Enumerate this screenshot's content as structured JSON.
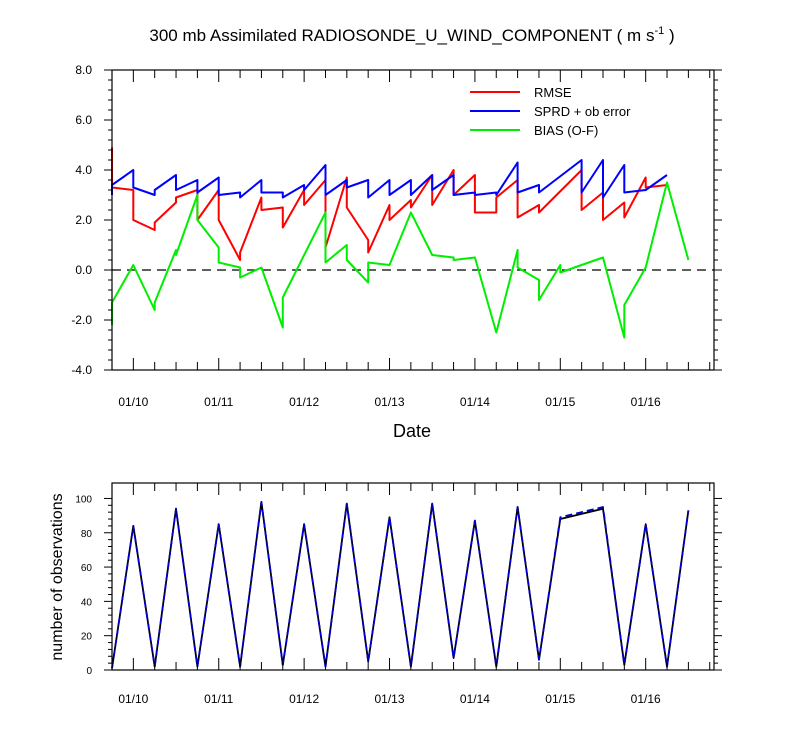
{
  "chart_data": [
    {
      "type": "line",
      "title": "300 mb Assimilated RADIOSONDE_U_WIND_COMPONENT ( m s",
      "title_superscript": "-1",
      "title_close": " )",
      "xlabel": "Date",
      "ylabel": "",
      "xlim": [
        0,
        7.05
      ],
      "ylim": [
        -4.0,
        8.0
      ],
      "yticks": [
        "-4.0",
        "-2.0",
        "0.0",
        "2.0",
        "4.0",
        "6.0",
        "8.0"
      ],
      "ytick_values": [
        -4,
        -2,
        0,
        2,
        4,
        6,
        8
      ],
      "xtick_labels": [
        "01/10",
        "01/11",
        "01/12",
        "01/13",
        "01/14",
        "01/15",
        "01/16"
      ],
      "xtick_values": [
        0.25,
        1.25,
        2.25,
        3.25,
        4.25,
        5.25,
        6.25
      ],
      "legend_position": "top-right",
      "zero_line": true,
      "series": [
        {
          "name": "RMSE",
          "color": "#ff0000",
          "points": [
            [
              0,
              4.9
            ],
            [
              0,
              3.3
            ],
            [
              0.25,
              3.2
            ],
            [
              0.25,
              2.0
            ],
            [
              0.5,
              1.6
            ],
            [
              0.5,
              1.9
            ],
            [
              0.75,
              2.7
            ],
            [
              0.75,
              2.9
            ],
            [
              1.0,
              3.2
            ],
            [
              1.0,
              2.0
            ],
            [
              1.25,
              3.2
            ],
            [
              1.25,
              2.0
            ],
            [
              1.5,
              0.4
            ],
            [
              1.5,
              0.7
            ],
            [
              1.75,
              2.9
            ],
            [
              1.75,
              2.4
            ],
            [
              2.0,
              2.5
            ],
            [
              2.0,
              1.7
            ],
            [
              2.25,
              3.2
            ],
            [
              2.25,
              2.6
            ],
            [
              2.5,
              3.6
            ],
            [
              2.5,
              0.9
            ],
            [
              2.75,
              3.7
            ],
            [
              2.75,
              2.5
            ],
            [
              3.0,
              1.2
            ],
            [
              3.0,
              0.7
            ],
            [
              3.25,
              2.6
            ],
            [
              3.25,
              2.0
            ],
            [
              3.5,
              2.8
            ],
            [
              3.5,
              2.5
            ],
            [
              3.75,
              3.8
            ],
            [
              3.75,
              2.6
            ],
            [
              4.0,
              4.0
            ],
            [
              4.0,
              3.0
            ],
            [
              4.25,
              3.8
            ],
            [
              4.25,
              2.3
            ],
            [
              4.5,
              2.3
            ],
            [
              4.5,
              2.9
            ],
            [
              4.75,
              3.6
            ],
            [
              4.75,
              2.1
            ],
            [
              5.0,
              2.6
            ],
            [
              5.0,
              2.3
            ],
            [
              5.5,
              4.0
            ],
            [
              5.5,
              2.4
            ],
            [
              5.75,
              3.1
            ],
            [
              5.75,
              2.0
            ],
            [
              6.0,
              2.7
            ],
            [
              6.0,
              2.1
            ],
            [
              6.25,
              3.7
            ],
            [
              6.25,
              3.3
            ],
            [
              6.5,
              3.4
            ],
            [
              6.5,
              3.4
            ]
          ]
        },
        {
          "name": "SPRD + ob error",
          "color": "#0000ff",
          "points": [
            [
              0,
              3.0
            ],
            [
              0,
              3.4
            ],
            [
              0.25,
              4.0
            ],
            [
              0.25,
              3.3
            ],
            [
              0.5,
              3.0
            ],
            [
              0.5,
              3.2
            ],
            [
              0.75,
              3.8
            ],
            [
              0.75,
              3.2
            ],
            [
              1.0,
              3.6
            ],
            [
              1.0,
              3.1
            ],
            [
              1.25,
              3.7
            ],
            [
              1.25,
              3.0
            ],
            [
              1.5,
              3.1
            ],
            [
              1.5,
              2.9
            ],
            [
              1.75,
              3.6
            ],
            [
              1.75,
              3.1
            ],
            [
              2.0,
              3.1
            ],
            [
              2.0,
              2.9
            ],
            [
              2.25,
              3.4
            ],
            [
              2.25,
              3.2
            ],
            [
              2.5,
              4.2
            ],
            [
              2.5,
              3.0
            ],
            [
              2.75,
              3.6
            ],
            [
              2.75,
              3.3
            ],
            [
              3.0,
              3.6
            ],
            [
              3.0,
              2.9
            ],
            [
              3.25,
              3.6
            ],
            [
              3.25,
              3.0
            ],
            [
              3.5,
              3.6
            ],
            [
              3.5,
              3.0
            ],
            [
              3.75,
              3.8
            ],
            [
              3.75,
              3.2
            ],
            [
              4.0,
              3.8
            ],
            [
              4.0,
              3.0
            ],
            [
              4.25,
              3.1
            ],
            [
              4.25,
              3.0
            ],
            [
              4.5,
              3.1
            ],
            [
              4.5,
              3.0
            ],
            [
              4.75,
              4.3
            ],
            [
              4.75,
              3.1
            ],
            [
              5.0,
              3.4
            ],
            [
              5.0,
              3.1
            ],
            [
              5.5,
              4.4
            ],
            [
              5.5,
              3.1
            ],
            [
              5.75,
              4.4
            ],
            [
              5.75,
              2.9
            ],
            [
              6.0,
              4.2
            ],
            [
              6.0,
              3.1
            ],
            [
              6.25,
              3.2
            ],
            [
              6.25,
              3.2
            ],
            [
              6.5,
              3.8
            ],
            [
              6.5,
              3.8
            ]
          ]
        },
        {
          "name": "BIAS (O-F)",
          "color": "#00ee00",
          "points": [
            [
              0,
              -2.2
            ],
            [
              0,
              -1.3
            ],
            [
              0.25,
              0.2
            ],
            [
              0.5,
              -1.6
            ],
            [
              0.5,
              -1.3
            ],
            [
              0.75,
              0.8
            ],
            [
              0.75,
              0.6
            ],
            [
              1.0,
              3.0
            ],
            [
              1.0,
              2.0
            ],
            [
              1.25,
              0.9
            ],
            [
              1.25,
              0.3
            ],
            [
              1.5,
              0.1
            ],
            [
              1.5,
              -0.3
            ],
            [
              1.75,
              0.1
            ],
            [
              2.0,
              -2.3
            ],
            [
              2.0,
              -1.1
            ],
            [
              2.5,
              2.3
            ],
            [
              2.5,
              0.3
            ],
            [
              2.75,
              1.0
            ],
            [
              2.75,
              0.4
            ],
            [
              3.0,
              -0.5
            ],
            [
              3.0,
              0.3
            ],
            [
              3.25,
              0.2
            ],
            [
              3.5,
              2.3
            ],
            [
              3.75,
              0.6
            ],
            [
              4.0,
              0.5
            ],
            [
              4.0,
              0.4
            ],
            [
              4.25,
              0.5
            ],
            [
              4.5,
              -2.5
            ],
            [
              4.75,
              0.8
            ],
            [
              4.75,
              0.1
            ],
            [
              5.0,
              -0.4
            ],
            [
              5.0,
              -1.2
            ],
            [
              5.25,
              0.2
            ],
            [
              5.25,
              -0.1
            ],
            [
              5.5,
              0.2
            ],
            [
              5.75,
              0.5
            ],
            [
              6.0,
              -2.7
            ],
            [
              6.0,
              -1.4
            ],
            [
              6.25,
              0.1
            ],
            [
              6.5,
              3.5
            ],
            [
              6.75,
              0.4
            ]
          ]
        }
      ]
    },
    {
      "type": "line",
      "title": "",
      "xlabel": "",
      "ylabel": "number of observations",
      "xlim": [
        0,
        7.05
      ],
      "ylim": [
        0,
        109
      ],
      "yticks": [
        "0",
        "20",
        "40",
        "60",
        "80",
        "100"
      ],
      "ytick_values": [
        0,
        20,
        40,
        60,
        80,
        100
      ],
      "xtick_labels": [
        "01/10",
        "01/11",
        "01/12",
        "01/13",
        "01/14",
        "01/15",
        "01/16"
      ],
      "xtick_values": [
        0.25,
        1.25,
        2.25,
        3.25,
        4.25,
        5.25,
        6.25
      ],
      "series": [
        {
          "color": "#000000",
          "dashed": false,
          "points": [
            [
              0,
              1
            ],
            [
              0.25,
              84
            ],
            [
              0.5,
              2
            ],
            [
              0.75,
              94
            ],
            [
              1.0,
              2
            ],
            [
              1.25,
              85
            ],
            [
              1.5,
              2
            ],
            [
              1.75,
              98
            ],
            [
              2.0,
              3
            ],
            [
              2.25,
              85
            ],
            [
              2.5,
              2
            ],
            [
              2.75,
              97
            ],
            [
              3.0,
              5
            ],
            [
              3.25,
              89
            ],
            [
              3.5,
              2
            ],
            [
              3.75,
              97
            ],
            [
              4.0,
              7
            ],
            [
              4.25,
              87
            ],
            [
              4.5,
              2
            ],
            [
              4.75,
              95
            ],
            [
              5.0,
              6
            ],
            [
              5.25,
              88
            ],
            [
              5.75,
              94
            ],
            [
              6.0,
              3
            ],
            [
              6.25,
              85
            ],
            [
              6.5,
              2
            ],
            [
              6.75,
              93
            ]
          ]
        },
        {
          "color": "#0000cc",
          "dashed": true,
          "points": [
            [
              0,
              1
            ],
            [
              0.25,
              84
            ],
            [
              0.5,
              2
            ],
            [
              0.75,
              94
            ],
            [
              1.0,
              2
            ],
            [
              1.25,
              85
            ],
            [
              1.5,
              2
            ],
            [
              1.75,
              98
            ],
            [
              2.0,
              3
            ],
            [
              2.25,
              85
            ],
            [
              2.5,
              2
            ],
            [
              2.75,
              97
            ],
            [
              3.0,
              5
            ],
            [
              3.25,
              89
            ],
            [
              3.5,
              2
            ],
            [
              3.75,
              97
            ],
            [
              4.0,
              7
            ],
            [
              4.25,
              87
            ],
            [
              4.5,
              2
            ],
            [
              4.75,
              95
            ],
            [
              5.0,
              6
            ],
            [
              5.25,
              89
            ],
            [
              5.75,
              95
            ],
            [
              6.0,
              3
            ],
            [
              6.25,
              85
            ],
            [
              6.5,
              2
            ],
            [
              6.75,
              93
            ]
          ]
        }
      ]
    }
  ]
}
